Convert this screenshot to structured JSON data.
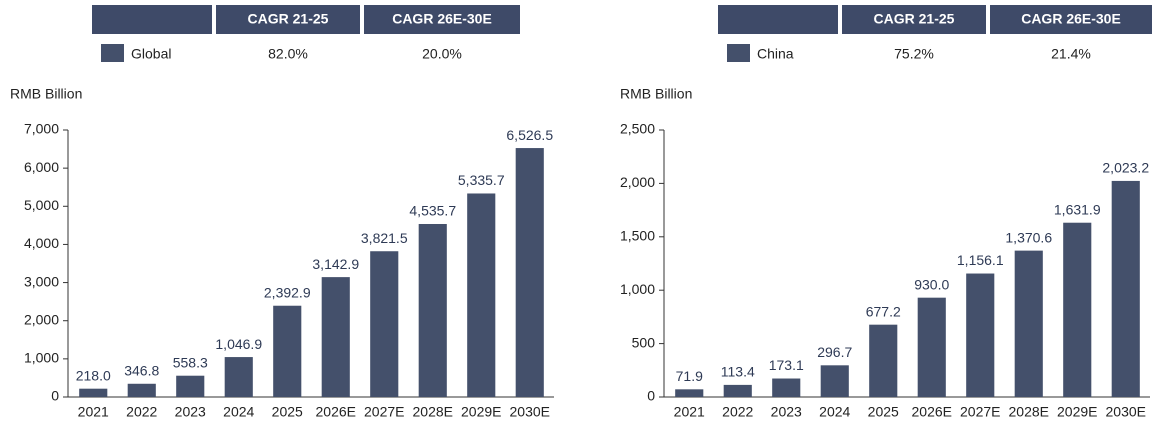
{
  "chart_data": [
    {
      "type": "bar",
      "table": {
        "headers": [
          "CAGR 21-25",
          "CAGR 26E-30E"
        ],
        "name": "Global",
        "values": [
          "82.0%",
          "20.0%"
        ]
      },
      "y_label": "RMB Billion",
      "categories": [
        "2021",
        "2022",
        "2023",
        "2024",
        "2025",
        "2026E",
        "2027E",
        "2028E",
        "2029E",
        "2030E"
      ],
      "values": [
        218.0,
        346.8,
        558.3,
        1046.9,
        2392.9,
        3142.9,
        3821.5,
        4535.7,
        5335.7,
        6526.5
      ],
      "value_labels": [
        "218.0",
        "346.8",
        "558.3",
        "1,046.9",
        "2,392.9",
        "3,142.9",
        "3,821.5",
        "4,535.7",
        "5,335.7",
        "6,526.5"
      ],
      "color": "#44506b",
      "ylim": [
        0,
        7000
      ],
      "yticks": [
        0,
        {
          "value": 1000,
          "label": "1,000"
        },
        {
          "value": 2000,
          "label": "2,000"
        },
        {
          "value": 3000,
          "label": "3,000"
        },
        {
          "value": 4000,
          "label": "4,000"
        },
        {
          "value": 5000,
          "label": "5,000"
        },
        {
          "value": 6000,
          "label": "6,000"
        },
        {
          "value": 7000,
          "label": "7,000"
        }
      ]
    },
    {
      "type": "bar",
      "table": {
        "headers": [
          "CAGR 21-25",
          "CAGR 26E-30E"
        ],
        "name": "China",
        "values": [
          "75.2%",
          "21.4%"
        ]
      },
      "y_label": "RMB Billion",
      "categories": [
        "2021",
        "2022",
        "2023",
        "2024",
        "2025",
        "2026E",
        "2027E",
        "2028E",
        "2029E",
        "2030E"
      ],
      "values": [
        71.9,
        113.4,
        173.1,
        296.7,
        677.2,
        930.0,
        1156.1,
        1370.6,
        1631.9,
        2023.2
      ],
      "value_labels": [
        "71.9",
        "113.4",
        "173.1",
        "296.7",
        "677.2",
        "930.0",
        "1,156.1",
        "1,370.6",
        "1,631.9",
        "2,023.2"
      ],
      "color": "#44506b",
      "ylim": [
        0,
        2500
      ],
      "yticks": [
        0,
        500,
        {
          "value": 1000,
          "label": "1,000"
        },
        {
          "value": 1500,
          "label": "1,500"
        },
        {
          "value": 2000,
          "label": "2,000"
        },
        {
          "value": 2500,
          "label": "2,500"
        }
      ]
    }
  ]
}
